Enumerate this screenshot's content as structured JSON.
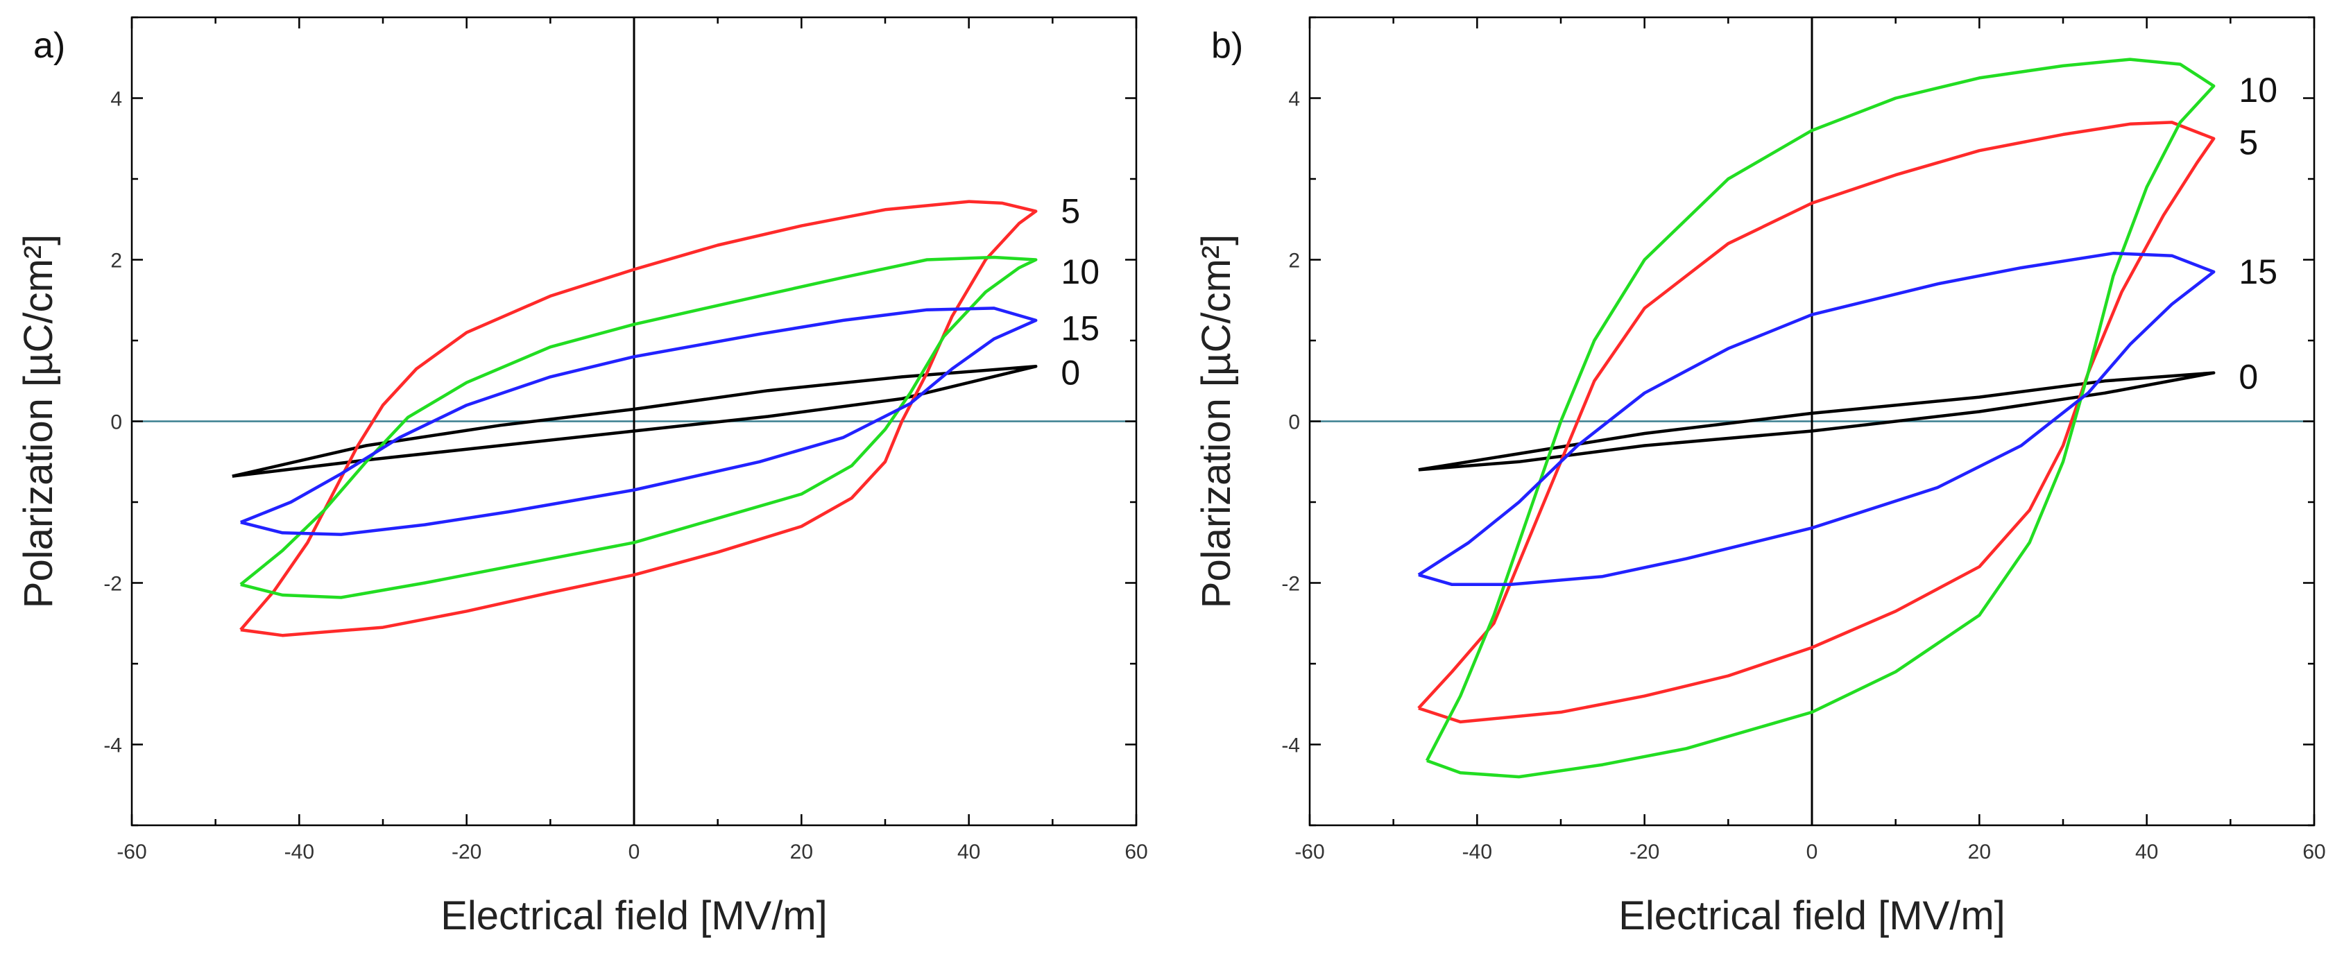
{
  "chart_data": [
    {
      "type": "line",
      "panel_label": "a)",
      "xlabel": "Electrical field [MV/m]",
      "ylabel": "Polarization [µC/cm²]",
      "xlim": [
        -60,
        60
      ],
      "ylim": [
        -5,
        5
      ],
      "xticks": [
        -60,
        -40,
        -20,
        0,
        20,
        40,
        60
      ],
      "yticks": [
        -4,
        -2,
        0,
        2,
        4
      ],
      "x_tick_labels": [
        "-60",
        "-40",
        "-20",
        "0",
        "20",
        "40",
        "60"
      ],
      "y_tick_labels": [
        "-4",
        "-2",
        "0",
        "2",
        "4"
      ],
      "series": [
        {
          "name": "0",
          "color": "#000000",
          "label_pos": [
            51,
            0.6
          ],
          "points": [
            [
              -48,
              -0.68
            ],
            [
              -32,
              -0.48
            ],
            [
              -16,
              -0.3
            ],
            [
              0,
              -0.12
            ],
            [
              16,
              0.06
            ],
            [
              32,
              0.28
            ],
            [
              48,
              0.68
            ],
            [
              32,
              0.55
            ],
            [
              16,
              0.38
            ],
            [
              0,
              0.15
            ],
            [
              -16,
              -0.05
            ],
            [
              -32,
              -0.3
            ],
            [
              -48,
              -0.68
            ]
          ]
        },
        {
          "name": "5",
          "color": "#ff2a2a",
          "label_pos": [
            51,
            2.6
          ],
          "points": [
            [
              -47,
              -2.58
            ],
            [
              -42,
              -2.65
            ],
            [
              -30,
              -2.55
            ],
            [
              -20,
              -2.35
            ],
            [
              -10,
              -2.12
            ],
            [
              0,
              -1.9
            ],
            [
              10,
              -1.62
            ],
            [
              20,
              -1.3
            ],
            [
              26,
              -0.95
            ],
            [
              30,
              -0.5
            ],
            [
              32,
              0
            ],
            [
              35,
              0.6
            ],
            [
              38,
              1.3
            ],
            [
              42,
              2
            ],
            [
              46,
              2.45
            ],
            [
              48,
              2.6
            ],
            [
              44,
              2.7
            ],
            [
              40,
              2.72
            ],
            [
              30,
              2.62
            ],
            [
              20,
              2.42
            ],
            [
              10,
              2.18
            ],
            [
              0,
              1.88
            ],
            [
              -10,
              1.55
            ],
            [
              -20,
              1.1
            ],
            [
              -26,
              0.65
            ],
            [
              -30,
              0.2
            ],
            [
              -33,
              -0.3
            ],
            [
              -36,
              -0.9
            ],
            [
              -39,
              -1.5
            ],
            [
              -43,
              -2.1
            ],
            [
              -47,
              -2.58
            ]
          ]
        },
        {
          "name": "10",
          "color": "#22dd22",
          "label_pos": [
            51,
            1.85
          ],
          "points": [
            [
              -47,
              -2.02
            ],
            [
              -42,
              -2.15
            ],
            [
              -35,
              -2.18
            ],
            [
              -25,
              -2
            ],
            [
              -15,
              -1.8
            ],
            [
              0,
              -1.5
            ],
            [
              10,
              -1.2
            ],
            [
              20,
              -0.9
            ],
            [
              26,
              -0.55
            ],
            [
              30,
              -0.1
            ],
            [
              33,
              0.35
            ],
            [
              37,
              1.05
            ],
            [
              42,
              1.6
            ],
            [
              46,
              1.9
            ],
            [
              48,
              2
            ],
            [
              43,
              2.03
            ],
            [
              35,
              2
            ],
            [
              25,
              1.78
            ],
            [
              15,
              1.55
            ],
            [
              0,
              1.2
            ],
            [
              -10,
              0.92
            ],
            [
              -20,
              0.48
            ],
            [
              -27,
              0.05
            ],
            [
              -32,
              -0.5
            ],
            [
              -37,
              -1.1
            ],
            [
              -42,
              -1.6
            ],
            [
              -47,
              -2.02
            ]
          ]
        },
        {
          "name": "15",
          "color": "#2222ff",
          "label_pos": [
            51,
            1.15
          ],
          "points": [
            [
              -47,
              -1.25
            ],
            [
              -42,
              -1.38
            ],
            [
              -35,
              -1.4
            ],
            [
              -25,
              -1.28
            ],
            [
              -15,
              -1.12
            ],
            [
              0,
              -0.85
            ],
            [
              15,
              -0.5
            ],
            [
              25,
              -0.2
            ],
            [
              33,
              0.22
            ],
            [
              38,
              0.65
            ],
            [
              43,
              1.02
            ],
            [
              48,
              1.25
            ],
            [
              43,
              1.4
            ],
            [
              35,
              1.38
            ],
            [
              25,
              1.25
            ],
            [
              15,
              1.08
            ],
            [
              0,
              0.8
            ],
            [
              -10,
              0.55
            ],
            [
              -20,
              0.2
            ],
            [
              -28,
              -0.2
            ],
            [
              -35,
              -0.65
            ],
            [
              -41,
              -1
            ],
            [
              -47,
              -1.25
            ]
          ]
        }
      ]
    },
    {
      "type": "line",
      "panel_label": "b)",
      "xlabel": "Electrical field [MV/m]",
      "ylabel": "Polarization [µC/cm²]",
      "xlim": [
        -60,
        60
      ],
      "ylim": [
        -5,
        5
      ],
      "xticks": [
        -60,
        -40,
        -20,
        0,
        20,
        40,
        60
      ],
      "yticks": [
        -4,
        -2,
        0,
        2,
        4
      ],
      "x_tick_labels": [
        "-60",
        "-40",
        "-20",
        "0",
        "20",
        "40",
        "60"
      ],
      "y_tick_labels": [
        "-4",
        "-2",
        "0",
        "2",
        "4"
      ],
      "series": [
        {
          "name": "0",
          "color": "#000000",
          "label_pos": [
            51,
            0.55
          ],
          "points": [
            [
              -47,
              -0.6
            ],
            [
              -35,
              -0.5
            ],
            [
              -20,
              -0.3
            ],
            [
              0,
              -0.12
            ],
            [
              20,
              0.12
            ],
            [
              35,
              0.35
            ],
            [
              48,
              0.6
            ],
            [
              35,
              0.5
            ],
            [
              20,
              0.3
            ],
            [
              0,
              0.1
            ],
            [
              -20,
              -0.15
            ],
            [
              -35,
              -0.4
            ],
            [
              -47,
              -0.6
            ]
          ]
        },
        {
          "name": "5",
          "color": "#ff2a2a",
          "label_pos": [
            51,
            3.45
          ],
          "points": [
            [
              -47,
              -3.55
            ],
            [
              -42,
              -3.72
            ],
            [
              -30,
              -3.6
            ],
            [
              -20,
              -3.4
            ],
            [
              -10,
              -3.15
            ],
            [
              0,
              -2.8
            ],
            [
              10,
              -2.35
            ],
            [
              20,
              -1.8
            ],
            [
              26,
              -1.1
            ],
            [
              30,
              -0.3
            ],
            [
              33,
              0.6
            ],
            [
              37,
              1.6
            ],
            [
              42,
              2.55
            ],
            [
              46,
              3.2
            ],
            [
              48,
              3.5
            ],
            [
              43,
              3.7
            ],
            [
              38,
              3.68
            ],
            [
              30,
              3.55
            ],
            [
              20,
              3.35
            ],
            [
              10,
              3.05
            ],
            [
              0,
              2.7
            ],
            [
              -10,
              2.2
            ],
            [
              -20,
              1.4
            ],
            [
              -26,
              0.5
            ],
            [
              -30,
              -0.5
            ],
            [
              -34,
              -1.5
            ],
            [
              -38,
              -2.5
            ],
            [
              -43,
              -3.1
            ],
            [
              -47,
              -3.55
            ]
          ]
        },
        {
          "name": "10",
          "color": "#22dd22",
          "label_pos": [
            51,
            4.1
          ],
          "points": [
            [
              -46,
              -4.2
            ],
            [
              -42,
              -4.35
            ],
            [
              -35,
              -4.4
            ],
            [
              -25,
              -4.25
            ],
            [
              -15,
              -4.05
            ],
            [
              0,
              -3.6
            ],
            [
              10,
              -3.1
            ],
            [
              20,
              -2.4
            ],
            [
              26,
              -1.5
            ],
            [
              30,
              -0.5
            ],
            [
              33,
              0.6
            ],
            [
              36,
              1.8
            ],
            [
              40,
              2.9
            ],
            [
              44,
              3.7
            ],
            [
              48,
              4.15
            ],
            [
              44,
              4.42
            ],
            [
              38,
              4.48
            ],
            [
              30,
              4.4
            ],
            [
              20,
              4.25
            ],
            [
              10,
              4
            ],
            [
              0,
              3.6
            ],
            [
              -10,
              3
            ],
            [
              -20,
              2
            ],
            [
              -26,
              1
            ],
            [
              -30,
              0
            ],
            [
              -34,
              -1.2
            ],
            [
              -38,
              -2.4
            ],
            [
              -42,
              -3.4
            ],
            [
              -46,
              -4.2
            ]
          ]
        },
        {
          "name": "15",
          "color": "#2222ff",
          "label_pos": [
            51,
            1.85
          ],
          "points": [
            [
              -47,
              -1.9
            ],
            [
              -43,
              -2.02
            ],
            [
              -36,
              -2.02
            ],
            [
              -25,
              -1.92
            ],
            [
              -15,
              -1.7
            ],
            [
              0,
              -1.32
            ],
            [
              15,
              -0.82
            ],
            [
              25,
              -0.3
            ],
            [
              33,
              0.35
            ],
            [
              38,
              0.95
            ],
            [
              43,
              1.45
            ],
            [
              48,
              1.85
            ],
            [
              43,
              2.05
            ],
            [
              36,
              2.08
            ],
            [
              25,
              1.9
            ],
            [
              15,
              1.7
            ],
            [
              0,
              1.32
            ],
            [
              -10,
              0.9
            ],
            [
              -20,
              0.35
            ],
            [
              -28,
              -0.3
            ],
            [
              -35,
              -1
            ],
            [
              -41,
              -1.5
            ],
            [
              -47,
              -1.9
            ]
          ]
        }
      ]
    }
  ]
}
